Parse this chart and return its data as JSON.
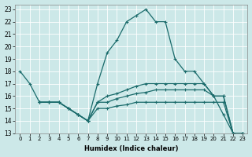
{
  "xlabel": "Humidex (Indice chaleur)",
  "bg_color": "#cce8e8",
  "line_color": "#1a6b6b",
  "xlim": [
    -0.5,
    23.5
  ],
  "ylim": [
    13,
    23.4
  ],
  "xticks": [
    0,
    1,
    2,
    3,
    4,
    5,
    6,
    7,
    8,
    9,
    10,
    11,
    12,
    13,
    14,
    15,
    16,
    17,
    18,
    19,
    20,
    21,
    22,
    23
  ],
  "yticks": [
    13,
    14,
    15,
    16,
    17,
    18,
    19,
    20,
    21,
    22,
    23
  ],
  "series": [
    {
      "x": [
        0,
        1,
        2,
        3,
        4,
        5,
        6,
        7,
        8,
        9,
        10,
        11,
        12,
        13,
        14,
        15,
        16,
        17,
        18,
        19,
        20,
        21,
        22,
        23
      ],
      "y": [
        18,
        17,
        15.5,
        15.5,
        15.5,
        15,
        14.5,
        14,
        17,
        19.5,
        20.5,
        22,
        22.5,
        23,
        22,
        22,
        19,
        18,
        18,
        17,
        16,
        14.5,
        13,
        13
      ]
    },
    {
      "x": [
        2,
        3,
        4,
        5,
        6,
        7,
        8,
        9,
        10,
        11,
        12,
        13,
        14,
        15,
        16,
        17,
        18,
        19,
        20,
        21,
        22,
        23
      ],
      "y": [
        15.5,
        15.5,
        15.5,
        15,
        14.5,
        14,
        15.5,
        16,
        16.2,
        16.5,
        16.8,
        17,
        17,
        17,
        17,
        17,
        17,
        17,
        16,
        16,
        13,
        13
      ]
    },
    {
      "x": [
        2,
        3,
        4,
        5,
        6,
        7,
        8,
        9,
        10,
        11,
        12,
        13,
        14,
        15,
        16,
        17,
        18,
        19,
        20,
        21,
        22,
        23
      ],
      "y": [
        15.5,
        15.5,
        15.5,
        15,
        14.5,
        14,
        15.5,
        15.5,
        15.8,
        16,
        16.2,
        16.3,
        16.5,
        16.5,
        16.5,
        16.5,
        16.5,
        16.5,
        16,
        16,
        13,
        13
      ]
    },
    {
      "x": [
        2,
        3,
        4,
        5,
        6,
        7,
        8,
        9,
        10,
        11,
        12,
        13,
        14,
        15,
        16,
        17,
        18,
        19,
        20,
        21,
        22,
        23
      ],
      "y": [
        15.5,
        15.5,
        15.5,
        15,
        14.5,
        14,
        15,
        15,
        15.2,
        15.3,
        15.5,
        15.5,
        15.5,
        15.5,
        15.5,
        15.5,
        15.5,
        15.5,
        15.5,
        15.5,
        13,
        13
      ]
    }
  ]
}
